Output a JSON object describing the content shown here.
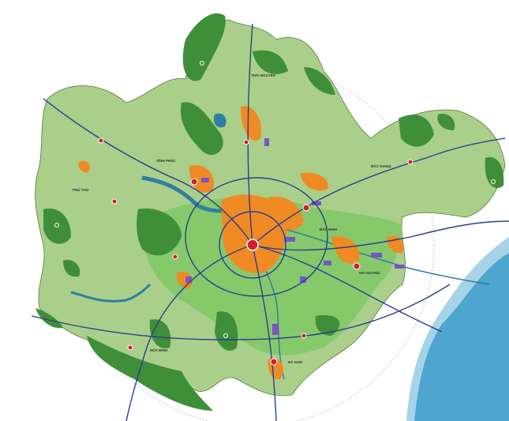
{
  "map": {
    "province_labels": [
      {
        "id": "thai-nguyen",
        "text": "THÁI NGUYÊN"
      },
      {
        "id": "vinh-phuc",
        "text": "VĨNH PHÚC"
      },
      {
        "id": "bac-giang",
        "text": "BẮC GIANG"
      },
      {
        "id": "phu-tho",
        "text": "PHÚ THỌ"
      },
      {
        "id": "bac-ninh",
        "text": "BẮC NINH"
      },
      {
        "id": "hai-duong",
        "text": "HẢI DƯƠNG"
      },
      {
        "id": "hoa-binh",
        "text": "HÒA BÌNH"
      },
      {
        "id": "ha-nam",
        "text": "HÀ NAM"
      }
    ],
    "colors": {
      "region_fill": "#a9cf8a",
      "plain_fill": "#86c96b",
      "forest": "#3f8f3a",
      "urban": "#f08a24",
      "industrial": "#7a55c2",
      "center": "#d3202a",
      "highway": "#2a3f8f",
      "river": "#2f7fa0",
      "sea": "#4ea6cf"
    }
  }
}
